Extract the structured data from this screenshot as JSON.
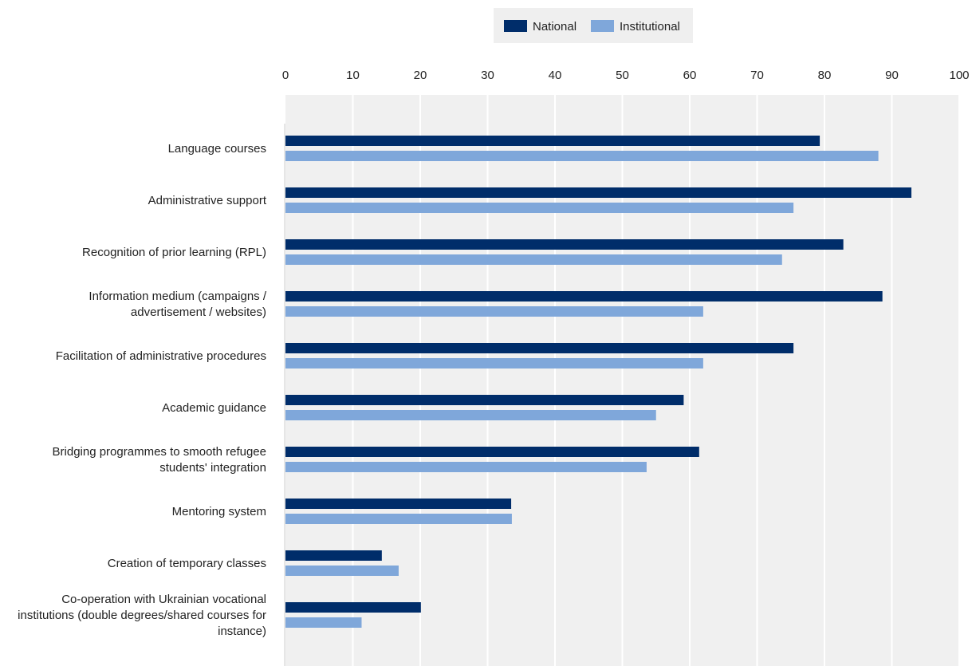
{
  "chart_data": {
    "type": "bar",
    "orientation": "horizontal",
    "title": "",
    "xlabel": "",
    "ylabel": "",
    "xlim": [
      0,
      100
    ],
    "ticks": [
      0,
      10,
      20,
      30,
      40,
      50,
      60,
      70,
      80,
      90,
      100
    ],
    "tick_labels": [
      "0",
      "10",
      "20",
      "30",
      "40",
      "50",
      "60",
      "70",
      "80",
      "90",
      "100"
    ],
    "grid": true,
    "legend_position": "top",
    "categories": [
      [
        "Language courses"
      ],
      [
        "Administrative support"
      ],
      [
        "Recognition of prior learning (RPL)"
      ],
      [
        "Information medium (campaigns /",
        "advertisement / websites)"
      ],
      [
        "Facilitation of administrative procedures"
      ],
      [
        "Academic guidance"
      ],
      [
        "Bridging programmes to smooth refugee",
        "students' integration"
      ],
      [
        "Mentoring system"
      ],
      [
        "Creation of temporary classes"
      ],
      [
        "Co-operation with Ukrainian vocational",
        "institutions (double degrees/shared courses for",
        "instance)"
      ]
    ],
    "series": [
      {
        "name": "National",
        "color": "#002d6a",
        "values": [
          79.3,
          92.9,
          82.8,
          88.6,
          75.4,
          59.1,
          61.4,
          33.5,
          14.3,
          20.1
        ]
      },
      {
        "name": "Institutional",
        "color": "#7fa7da",
        "values": [
          88.0,
          75.4,
          73.7,
          62.0,
          62.0,
          55.0,
          53.6,
          33.6,
          16.8,
          11.3
        ]
      }
    ]
  },
  "colors": {
    "plot_background": "#f0f0f0",
    "gridline": "#ffffff",
    "legend_background": "#efefef"
  }
}
